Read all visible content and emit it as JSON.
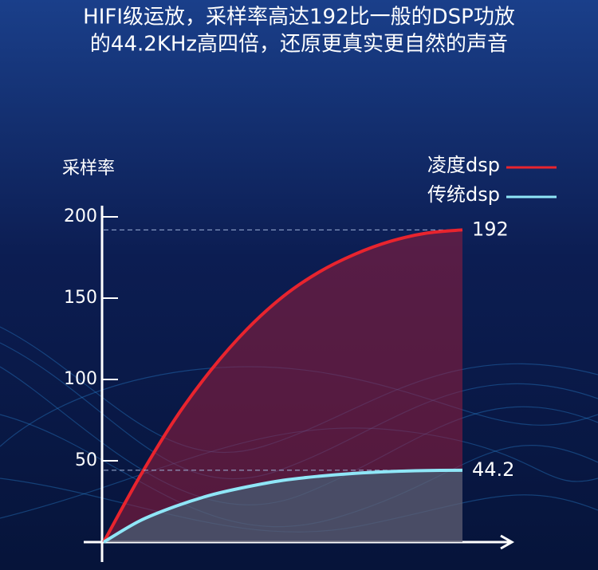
{
  "chart_data": {
    "type": "line",
    "title": [
      "HIFI级运放，采样率高达192比一般的DSP功放",
      "的44.2KHz高四倍，还原更真实更自然的声音"
    ],
    "y_label": "采样率",
    "categories": [
      null,
      null,
      null,
      null,
      null,
      null,
      null,
      null,
      null,
      null,
      null
    ],
    "series": [
      {
        "name": "凌度dsp",
        "color": "#e8242e",
        "fill": "rgba(150,30,60,0.55)",
        "values": [
          0,
          40,
          76,
          106,
          131,
          151,
          166,
          177,
          185,
          190,
          192
        ]
      },
      {
        "name": "传统dsp",
        "color": "#8fe6f7",
        "fill": "rgba(60,140,150,0.45)",
        "values": [
          0,
          13,
          22,
          29,
          34,
          38,
          40.5,
          42.3,
          43.4,
          44,
          44.2
        ]
      }
    ],
    "ylim": [
      0,
      200
    ],
    "yticks": [
      50,
      100,
      150,
      200
    ],
    "legend": "top-right"
  }
}
